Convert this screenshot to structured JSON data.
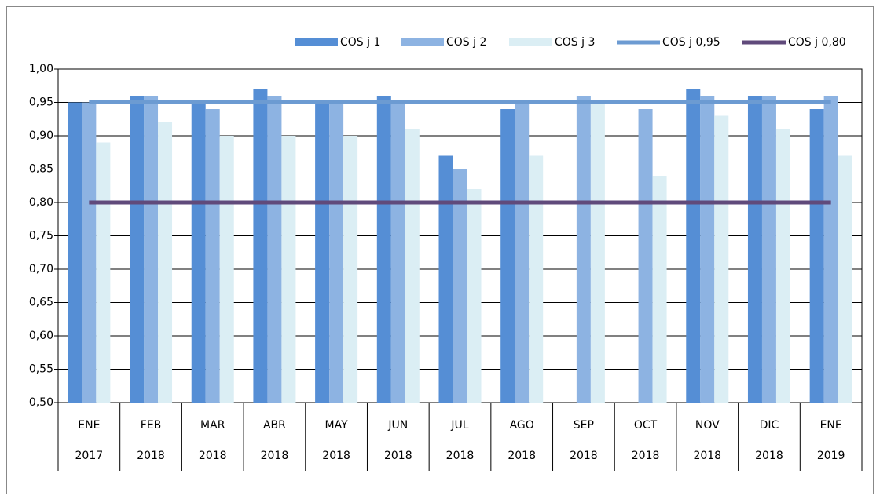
{
  "chart_data": {
    "type": "bar",
    "categories": [
      "ENE",
      "FEB",
      "MAR",
      "ABR",
      "MAY",
      "JUN",
      "JUL",
      "AGO",
      "SEP",
      "OCT",
      "NOV",
      "DIC",
      "ENE"
    ],
    "category_years": [
      "2017",
      "2018",
      "2018",
      "2018",
      "2018",
      "2018",
      "2018",
      "2018",
      "2018",
      "2018",
      "2018",
      "2018",
      "2019"
    ],
    "series": [
      {
        "name": "COS j 1",
        "type": "bar",
        "color": "#558ed5",
        "values": [
          0.95,
          0.96,
          0.95,
          0.97,
          0.95,
          0.96,
          0.87,
          0.94,
          null,
          null,
          0.97,
          0.96,
          0.94
        ]
      },
      {
        "name": "COS j 2",
        "type": "bar",
        "color": "#8db3e2",
        "values": [
          0.95,
          0.96,
          0.94,
          0.96,
          0.95,
          0.95,
          0.85,
          0.95,
          0.96,
          0.94,
          0.96,
          0.96,
          0.96
        ]
      },
      {
        "name": "COS j 3",
        "type": "bar",
        "color": "#dbeef4",
        "values": [
          0.89,
          0.92,
          0.9,
          0.9,
          0.9,
          0.91,
          0.82,
          0.87,
          0.95,
          0.84,
          0.93,
          0.91,
          0.87
        ]
      },
      {
        "name": "COS j 0,95",
        "type": "line",
        "color": "#6c9bd2",
        "values": [
          0.95,
          0.95,
          0.95,
          0.95,
          0.95,
          0.95,
          0.95,
          0.95,
          0.95,
          0.95,
          0.95,
          0.95,
          0.95
        ]
      },
      {
        "name": "COS j 0,80",
        "type": "line",
        "color": "#604a7b",
        "values": [
          0.8,
          0.8,
          0.8,
          0.8,
          0.8,
          0.8,
          0.8,
          0.8,
          0.8,
          0.8,
          0.8,
          0.8,
          0.8
        ]
      }
    ],
    "ylim": [
      0.5,
      1.0
    ],
    "yticks": [
      {
        "value": 0.5,
        "label": "0,50"
      },
      {
        "value": 0.55,
        "label": "0,55"
      },
      {
        "value": 0.6,
        "label": "0,60"
      },
      {
        "value": 0.65,
        "label": "0,65"
      },
      {
        "value": 0.7,
        "label": "0,70"
      },
      {
        "value": 0.75,
        "label": "0,75"
      },
      {
        "value": 0.8,
        "label": "0,80"
      },
      {
        "value": 0.85,
        "label": "0,85"
      },
      {
        "value": 0.9,
        "label": "0,90"
      },
      {
        "value": 0.95,
        "label": "0,95"
      },
      {
        "value": 1.0,
        "label": "1,00"
      }
    ],
    "grid": true,
    "legend": "top"
  }
}
